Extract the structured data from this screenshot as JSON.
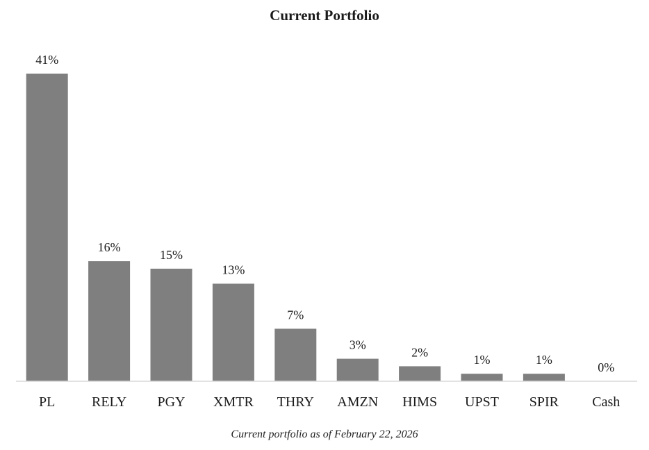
{
  "chart_data": {
    "type": "bar",
    "title": "Current Portfolio",
    "categories": [
      "PL",
      "RELY",
      "PGY",
      "XMTR",
      "THRY",
      "AMZN",
      "HIMS",
      "UPST",
      "SPIR",
      "Cash"
    ],
    "values": [
      41,
      16,
      15,
      13,
      7,
      3,
      2,
      1,
      1,
      0
    ],
    "data_labels": [
      "41%",
      "16%",
      "15%",
      "13%",
      "7%",
      "3%",
      "2%",
      "1%",
      "1%",
      "0%"
    ],
    "value_unit": "%",
    "xlabel": "",
    "ylabel": "",
    "ylim": [
      0,
      41
    ],
    "grid": false,
    "legend": "none",
    "bar_color": "#7f7f7f",
    "axis_color": "#d9d9d9"
  },
  "caption": "Current portfolio as of February 22, 2026"
}
